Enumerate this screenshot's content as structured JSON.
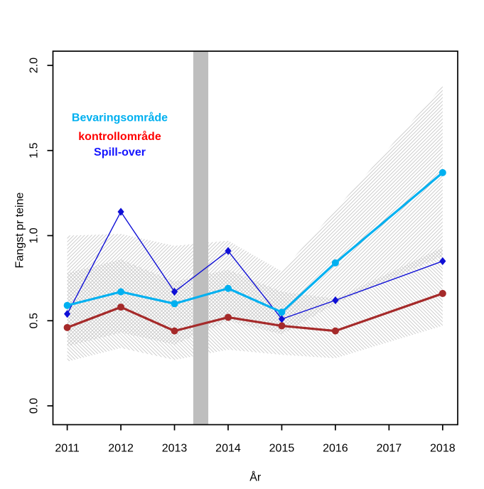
{
  "chart_data": {
    "type": "line",
    "title": "",
    "xlabel": "År",
    "ylabel": "Fangst pr teine",
    "x_tick_labels": [
      "2011",
      "2012",
      "2013",
      "2014",
      "2015",
      "2016",
      "2017",
      "2018"
    ],
    "y_tick_labels": [
      "0.0",
      "0.5",
      "1.0",
      "1.5",
      "2.0"
    ],
    "y_tick_values": [
      0.0,
      0.5,
      1.0,
      1.5,
      2.0
    ],
    "xlim": [
      2010.72,
      2018.28
    ],
    "ylim": [
      -0.1,
      2.08
    ],
    "grid": false,
    "legend_position": "inside-upper-left",
    "x": [
      2011,
      2012,
      2013,
      2014,
      2015,
      2016,
      2018
    ],
    "series": [
      {
        "name": "Bevaringsområde",
        "color": "#00B0F0",
        "label_color": "#00B0F0",
        "marker": "circle",
        "line_width": 3.2,
        "values": [
          0.59,
          0.67,
          0.6,
          0.69,
          0.55,
          0.84,
          1.37
        ]
      },
      {
        "name": "kontrollområde",
        "color": "#A52A2A",
        "label_color": "#FF0000",
        "marker": "circle",
        "line_width": 3.2,
        "values": [
          0.46,
          0.58,
          0.44,
          0.52,
          0.47,
          0.44,
          0.66
        ]
      },
      {
        "name": "Spill-over",
        "color": "#0F0FD6",
        "label_color": "#1414FF",
        "marker": "diamond",
        "line_width": 1.4,
        "values": [
          0.54,
          1.14,
          0.67,
          0.91,
          0.51,
          0.62,
          0.85
        ]
      }
    ],
    "confidence_bands": [
      {
        "series": "Bevaringsområde",
        "hatch": "asc",
        "upper": [
          [
            2011,
            1.0
          ],
          [
            2012,
            1.01
          ],
          [
            2013,
            0.94
          ],
          [
            2014,
            0.97
          ],
          [
            2015,
            0.79
          ],
          [
            2016,
            1.15
          ],
          [
            2018,
            1.88
          ]
        ],
        "lower": [
          [
            2011,
            0.35
          ],
          [
            2012,
            0.43
          ],
          [
            2013,
            0.36
          ],
          [
            2014,
            0.5
          ],
          [
            2015,
            0.42
          ],
          [
            2016,
            0.6
          ],
          [
            2018,
            0.88
          ]
        ]
      },
      {
        "series": "kontrollområde",
        "hatch": "desc",
        "upper": [
          [
            2011,
            0.78
          ],
          [
            2012,
            0.86
          ],
          [
            2013,
            0.73
          ],
          [
            2014,
            0.8
          ],
          [
            2015,
            0.67
          ],
          [
            2016,
            0.63
          ],
          [
            2018,
            0.93
          ]
        ],
        "lower": [
          [
            2011,
            0.26
          ],
          [
            2012,
            0.34
          ],
          [
            2013,
            0.27
          ],
          [
            2014,
            0.33
          ],
          [
            2015,
            0.3
          ],
          [
            2016,
            0.28
          ],
          [
            2018,
            0.47
          ]
        ]
      }
    ],
    "event_band": {
      "x_from": 2013.35,
      "x_to": 2013.63,
      "color": "#BEBEBE"
    },
    "colors": {
      "hatch": "#C8C8C8",
      "axis": "#000000",
      "background": "#FFFFFF"
    }
  }
}
